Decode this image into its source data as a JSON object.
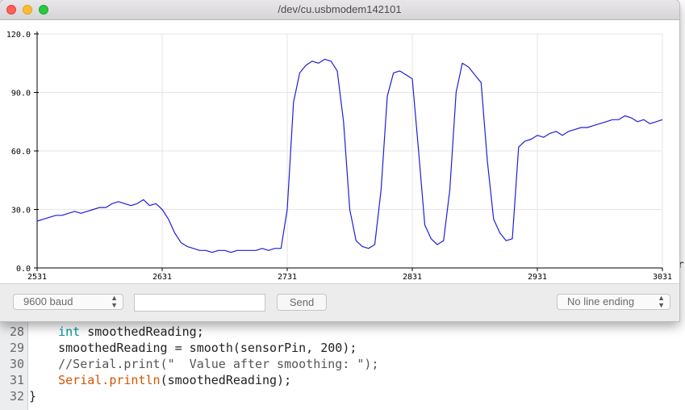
{
  "window": {
    "title": "/dev/cu.usbmodem142101"
  },
  "controls": {
    "baud_rate": "9600 baud",
    "message_value": "",
    "send_label": "Send",
    "line_ending": "No line ending"
  },
  "editor": {
    "lines": [
      {
        "number": "28",
        "tokens": [
          {
            "t": "    "
          },
          {
            "t": "int",
            "c": "kw"
          },
          {
            "t": " smoothedReading;"
          }
        ]
      },
      {
        "number": "29",
        "tokens": [
          {
            "t": "    smoothedReading = smooth(sensorPin, 200);"
          }
        ]
      },
      {
        "number": "30",
        "tokens": [
          {
            "t": "    "
          },
          {
            "t": "//Serial.print(\"  Value after smoothing: \");",
            "c": "cm"
          }
        ]
      },
      {
        "number": "31",
        "tokens": [
          {
            "t": "    "
          },
          {
            "t": "Serial.println",
            "c": "fn"
          },
          {
            "t": "(smoothedReading);"
          }
        ]
      },
      {
        "number": "32",
        "tokens": [
          {
            "t": "}"
          }
        ]
      }
    ],
    "edge_fragment": "ri"
  },
  "colors": {
    "series": "#1f1fd6",
    "grid": "#e6e6e6",
    "axis": "#000000"
  },
  "chart_data": {
    "type": "line",
    "title": "",
    "xlabel": "",
    "ylabel": "",
    "xlim": [
      2531,
      3031
    ],
    "ylim": [
      0,
      120
    ],
    "x_ticks": [
      "2531",
      "2631",
      "2731",
      "2831",
      "2931",
      "3031"
    ],
    "y_ticks": [
      "0.0",
      "30.0",
      "60.0",
      "90.0",
      "120.0"
    ],
    "grid": true,
    "legend": "none",
    "series": [
      {
        "x": [
          2531,
          2536,
          2541,
          2546,
          2551,
          2556,
          2561,
          2566,
          2571,
          2576,
          2581,
          2586,
          2591,
          2596,
          2601,
          2606,
          2611,
          2616,
          2621,
          2626,
          2631,
          2636,
          2641,
          2646,
          2651,
          2656,
          2661,
          2666,
          2671,
          2676,
          2681,
          2686,
          2691,
          2696,
          2701,
          2706,
          2711,
          2716,
          2721,
          2726,
          2731,
          2736,
          2741,
          2746,
          2751,
          2756,
          2761,
          2766,
          2771,
          2776,
          2781,
          2786,
          2791,
          2796,
          2801,
          2806,
          2811,
          2816,
          2821,
          2826,
          2831,
          2836,
          2841,
          2846,
          2851,
          2856,
          2861,
          2866,
          2871,
          2876,
          2881,
          2886,
          2891,
          2896,
          2901,
          2906,
          2911,
          2916,
          2921,
          2926,
          2931,
          2936,
          2941,
          2946,
          2951,
          2956,
          2961,
          2966,
          2971,
          2976,
          2981,
          2986,
          2991,
          2996,
          3001,
          3006,
          3011,
          3016,
          3021,
          3026,
          3031
        ],
        "y": [
          24,
          25,
          26,
          27,
          27,
          28,
          29,
          28,
          29,
          30,
          31,
          31,
          33,
          34,
          33,
          32,
          33,
          35,
          32,
          33,
          30,
          25,
          18,
          13,
          11,
          10,
          9,
          9,
          8,
          9,
          9,
          8,
          9,
          9,
          9,
          9,
          10,
          9,
          10,
          10,
          30,
          85,
          100,
          104,
          106,
          105,
          107,
          106,
          101,
          75,
          30,
          14,
          11,
          10,
          12,
          40,
          88,
          100,
          101,
          99,
          97,
          60,
          22,
          15,
          12,
          14,
          40,
          90,
          105,
          103,
          99,
          95,
          55,
          25,
          18,
          14,
          15,
          62,
          65,
          66,
          68,
          67,
          69,
          70,
          68,
          70,
          71,
          72,
          72,
          73,
          74,
          75,
          76,
          76,
          78,
          77,
          75,
          76,
          74,
          75,
          76
        ]
      }
    ]
  }
}
